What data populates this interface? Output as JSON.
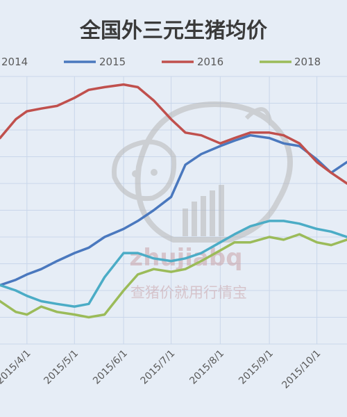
{
  "chart_data": {
    "type": "line",
    "title": "全国外三元生猪均价",
    "xlabel": "",
    "ylabel": "",
    "x_ticks": [
      "2015/4/1",
      "2015/5/1",
      "2015/6/1",
      "2015/7/1",
      "2015/8/1",
      "2015/9/1",
      "2015/10/1"
    ],
    "x_domain": [
      "2015/3/15",
      "2015/10/20"
    ],
    "y_domain": [
      0,
      100
    ],
    "grid": true,
    "legend_position": "top",
    "series": [
      {
        "name": "2014",
        "color": "#6b8fc0",
        "points": []
      },
      {
        "name": "2015",
        "color": "#4a78be",
        "points": [
          [
            "2015/3/15",
            22
          ],
          [
            "2015/3/25",
            24
          ],
          [
            "2015/4/1",
            26
          ],
          [
            "2015/4/10",
            28
          ],
          [
            "2015/4/20",
            31
          ],
          [
            "2015/5/1",
            34
          ],
          [
            "2015/5/10",
            36
          ],
          [
            "2015/5/20",
            40
          ],
          [
            "2015/6/1",
            43
          ],
          [
            "2015/6/10",
            46
          ],
          [
            "2015/6/20",
            50
          ],
          [
            "2015/7/1",
            55
          ],
          [
            "2015/7/10",
            67
          ],
          [
            "2015/7/20",
            71
          ],
          [
            "2015/8/1",
            74
          ],
          [
            "2015/8/10",
            76
          ],
          [
            "2015/8/20",
            78
          ],
          [
            "2015/9/1",
            77
          ],
          [
            "2015/9/10",
            75
          ],
          [
            "2015/9/20",
            74
          ],
          [
            "2015/10/1",
            69
          ],
          [
            "2015/10/10",
            64
          ],
          [
            "2015/10/20",
            68
          ]
        ]
      },
      {
        "name": "2016",
        "color": "#c0504d",
        "points": [
          [
            "2015/3/15",
            77
          ],
          [
            "2015/3/25",
            84
          ],
          [
            "2015/4/1",
            87
          ],
          [
            "2015/4/10",
            88
          ],
          [
            "2015/4/20",
            89
          ],
          [
            "2015/5/1",
            92
          ],
          [
            "2015/5/10",
            95
          ],
          [
            "2015/5/20",
            96
          ],
          [
            "2015/6/1",
            97
          ],
          [
            "2015/6/10",
            96
          ],
          [
            "2015/6/20",
            91
          ],
          [
            "2015/7/1",
            84
          ],
          [
            "2015/7/10",
            79
          ],
          [
            "2015/7/20",
            78
          ],
          [
            "2015/8/1",
            75
          ],
          [
            "2015/8/10",
            77
          ],
          [
            "2015/8/20",
            79
          ],
          [
            "2015/9/1",
            79
          ],
          [
            "2015/9/10",
            78
          ],
          [
            "2015/9/20",
            75
          ],
          [
            "2015/10/1",
            68
          ],
          [
            "2015/10/10",
            64
          ],
          [
            "2015/10/20",
            60
          ]
        ]
      },
      {
        "name": "",
        "color": "#4bacc6",
        "points": [
          [
            "2015/3/15",
            22
          ],
          [
            "2015/3/25",
            20
          ],
          [
            "2015/4/1",
            18
          ],
          [
            "2015/4/10",
            16
          ],
          [
            "2015/4/20",
            15
          ],
          [
            "2015/5/1",
            14
          ],
          [
            "2015/5/10",
            15
          ],
          [
            "2015/5/20",
            25
          ],
          [
            "2015/6/1",
            34
          ],
          [
            "2015/6/10",
            34
          ],
          [
            "2015/6/20",
            32
          ],
          [
            "2015/7/1",
            31
          ],
          [
            "2015/7/10",
            32
          ],
          [
            "2015/7/20",
            34
          ],
          [
            "2015/8/1",
            38
          ],
          [
            "2015/8/10",
            41
          ],
          [
            "2015/8/20",
            44
          ],
          [
            "2015/9/1",
            46
          ],
          [
            "2015/9/10",
            46
          ],
          [
            "2015/9/20",
            45
          ],
          [
            "2015/10/1",
            43
          ],
          [
            "2015/10/10",
            42
          ],
          [
            "2015/10/20",
            40
          ]
        ]
      },
      {
        "name": "2018",
        "color": "#9bbb59",
        "points": [
          [
            "2015/3/15",
            16
          ],
          [
            "2015/3/25",
            12
          ],
          [
            "2015/4/1",
            11
          ],
          [
            "2015/4/10",
            14
          ],
          [
            "2015/4/20",
            12
          ],
          [
            "2015/5/1",
            11
          ],
          [
            "2015/5/10",
            10
          ],
          [
            "2015/5/20",
            11
          ],
          [
            "2015/6/1",
            20
          ],
          [
            "2015/6/10",
            26
          ],
          [
            "2015/6/20",
            28
          ],
          [
            "2015/7/1",
            27
          ],
          [
            "2015/7/10",
            28
          ],
          [
            "2015/7/20",
            31
          ],
          [
            "2015/8/1",
            35
          ],
          [
            "2015/8/10",
            38
          ],
          [
            "2015/8/20",
            38
          ],
          [
            "2015/9/1",
            40
          ],
          [
            "2015/9/10",
            39
          ],
          [
            "2015/9/20",
            41
          ],
          [
            "2015/10/1",
            38
          ],
          [
            "2015/10/10",
            37
          ],
          [
            "2015/10/20",
            39
          ]
        ]
      }
    ]
  },
  "watermark": {
    "brand": "zhujiabq",
    "slogan": "查猪价就用行情宝",
    "icon": "pig-logo-icon"
  }
}
